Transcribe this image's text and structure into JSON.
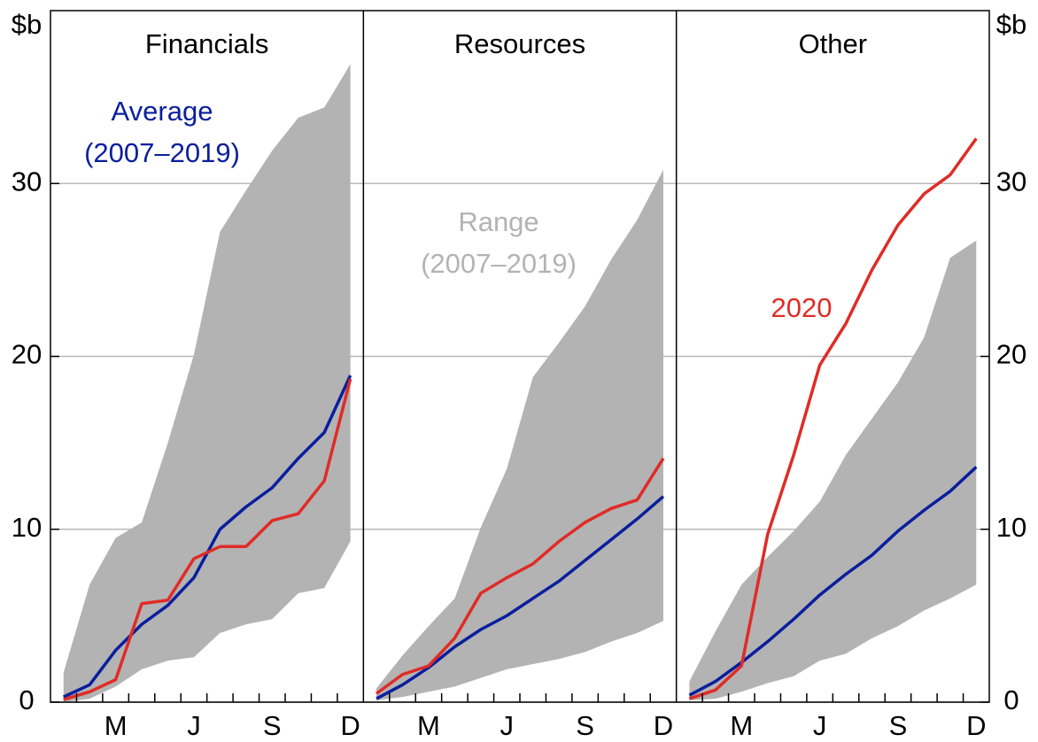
{
  "chart_data": {
    "type": "line",
    "y_unit": "$b",
    "categories": [
      null,
      null,
      "M",
      null,
      null,
      "J",
      null,
      null,
      "S",
      null,
      null,
      "D"
    ],
    "ylim": [
      0,
      40
    ],
    "yticks": [
      0,
      10,
      20,
      30
    ],
    "grid": true,
    "range_color": "#b3b3b3",
    "average_color": "#0a1e9e",
    "current_color": "#e02b26",
    "annotations": {
      "average": [
        "Average",
        "(2007–2019)"
      ],
      "range": [
        "Range",
        "(2007–2019)"
      ],
      "current": "2020"
    },
    "panels": [
      {
        "title": "Financials",
        "range_upper": [
          1.7,
          6.8,
          9.5,
          10.4,
          15.0,
          20.1,
          27.2,
          29.6,
          31.9,
          33.8,
          34.4,
          36.9
        ],
        "range_lower": [
          0.0,
          0.2,
          0.9,
          1.9,
          2.4,
          2.6,
          4.0,
          4.5,
          4.8,
          6.3,
          6.6,
          9.3
        ],
        "average": [
          0.3,
          1.0,
          3.0,
          4.5,
          5.6,
          7.2,
          10.0,
          11.3,
          12.4,
          14.1,
          15.6,
          18.9
        ],
        "current": [
          0.15,
          0.6,
          1.3,
          5.7,
          5.9,
          8.3,
          9.0,
          9.0,
          10.5,
          10.9,
          12.8,
          18.7
        ]
      },
      {
        "title": "Resources",
        "range_upper": [
          0.8,
          2.7,
          4.4,
          6.0,
          10.1,
          13.5,
          18.8,
          20.8,
          22.9,
          25.6,
          27.9,
          30.8
        ],
        "range_lower": [
          0.1,
          0.3,
          0.6,
          0.9,
          1.4,
          1.9,
          2.2,
          2.5,
          2.9,
          3.5,
          4.0,
          4.7
        ],
        "average": [
          0.2,
          1.0,
          2.0,
          3.2,
          4.2,
          5.0,
          6.0,
          7.0,
          8.2,
          9.4,
          10.6,
          11.9
        ],
        "current": [
          0.5,
          1.6,
          2.1,
          3.7,
          6.3,
          7.2,
          8.0,
          9.3,
          10.4,
          11.2,
          11.7,
          14.1
        ]
      },
      {
        "title": "Other",
        "range_upper": [
          1.2,
          4.1,
          6.8,
          8.4,
          9.9,
          11.6,
          14.3,
          16.4,
          18.5,
          21.1,
          25.7,
          26.7
        ],
        "range_lower": [
          0.1,
          0.2,
          0.6,
          1.1,
          1.5,
          2.4,
          2.8,
          3.7,
          4.4,
          5.3,
          6.0,
          6.8
        ],
        "average": [
          0.4,
          1.2,
          2.3,
          3.5,
          4.8,
          6.2,
          7.4,
          8.5,
          9.9,
          11.1,
          12.2,
          13.6
        ],
        "current": [
          0.2,
          0.7,
          2.1,
          9.7,
          14.3,
          19.5,
          21.9,
          25.0,
          27.6,
          29.4,
          30.5,
          32.6
        ]
      }
    ]
  }
}
